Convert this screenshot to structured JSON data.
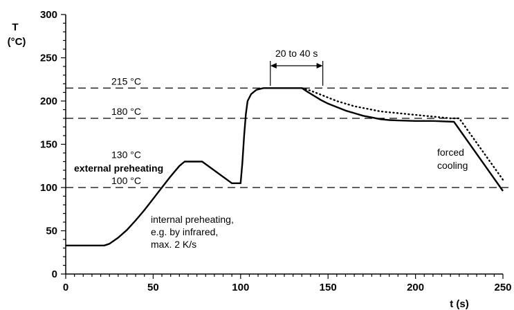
{
  "chart_data": {
    "type": "line",
    "title": "",
    "xlabel": "t (s)",
    "ylabel_line1": "T",
    "ylabel_line2": "(°C)",
    "xlim": [
      0,
      250
    ],
    "ylim": [
      0,
      300
    ],
    "x_ticks": [
      0,
      50,
      100,
      150,
      200,
      250
    ],
    "y_ticks": [
      0,
      50,
      100,
      150,
      200,
      250,
      300
    ],
    "grid": false,
    "reference_lines": [
      {
        "value": 215,
        "label": "215 °C"
      },
      {
        "value": 180,
        "label": "180 °C"
      },
      {
        "value": 130,
        "label": "130 °C"
      },
      {
        "value": 100,
        "label": "100 °C"
      }
    ],
    "series": [
      {
        "style": "solid",
        "points": [
          [
            0,
            33
          ],
          [
            22,
            33
          ],
          [
            25,
            35
          ],
          [
            30,
            42
          ],
          [
            35,
            51
          ],
          [
            40,
            62
          ],
          [
            45,
            74
          ],
          [
            50,
            87
          ],
          [
            55,
            100
          ],
          [
            60,
            113
          ],
          [
            65,
            125
          ],
          [
            68,
            130
          ],
          [
            78,
            130
          ],
          [
            95,
            105
          ],
          [
            100,
            105
          ],
          [
            101,
            128
          ],
          [
            102,
            160
          ],
          [
            103,
            185
          ],
          [
            104,
            200
          ],
          [
            106,
            208
          ],
          [
            109,
            213
          ],
          [
            113,
            215
          ],
          [
            135,
            215
          ],
          [
            138,
            211
          ],
          [
            142,
            206
          ],
          [
            146,
            201
          ],
          [
            150,
            197
          ],
          [
            155,
            193
          ],
          [
            160,
            189
          ],
          [
            165,
            186
          ],
          [
            170,
            183
          ],
          [
            175,
            181
          ],
          [
            180,
            179
          ],
          [
            185,
            178
          ],
          [
            190,
            177.5
          ],
          [
            200,
            177
          ],
          [
            210,
            177
          ],
          [
            222,
            176
          ],
          [
            250,
            96
          ]
        ]
      },
      {
        "style": "dotted",
        "points": [
          [
            135,
            215
          ],
          [
            140,
            212
          ],
          [
            145,
            208
          ],
          [
            150,
            204
          ],
          [
            155,
            200
          ],
          [
            160,
            197
          ],
          [
            165,
            194
          ],
          [
            170,
            192
          ],
          [
            175,
            190
          ],
          [
            180,
            188
          ],
          [
            185,
            187
          ],
          [
            190,
            186
          ],
          [
            195,
            185
          ],
          [
            200,
            184
          ],
          [
            205,
            183
          ],
          [
            210,
            182
          ],
          [
            215,
            181
          ],
          [
            220,
            180
          ],
          [
            225,
            180
          ],
          [
            250,
            109
          ]
        ]
      }
    ],
    "annotations": {
      "external_preheating": "external preheating",
      "internal_preheating": [
        "internal preheating,",
        "e.g. by infrared,",
        "max. 2 K/s"
      ],
      "forced_cooling": [
        "forced",
        "cooling"
      ],
      "duration": {
        "label": "20 to 40 s",
        "from": 117,
        "to": 147
      }
    }
  }
}
